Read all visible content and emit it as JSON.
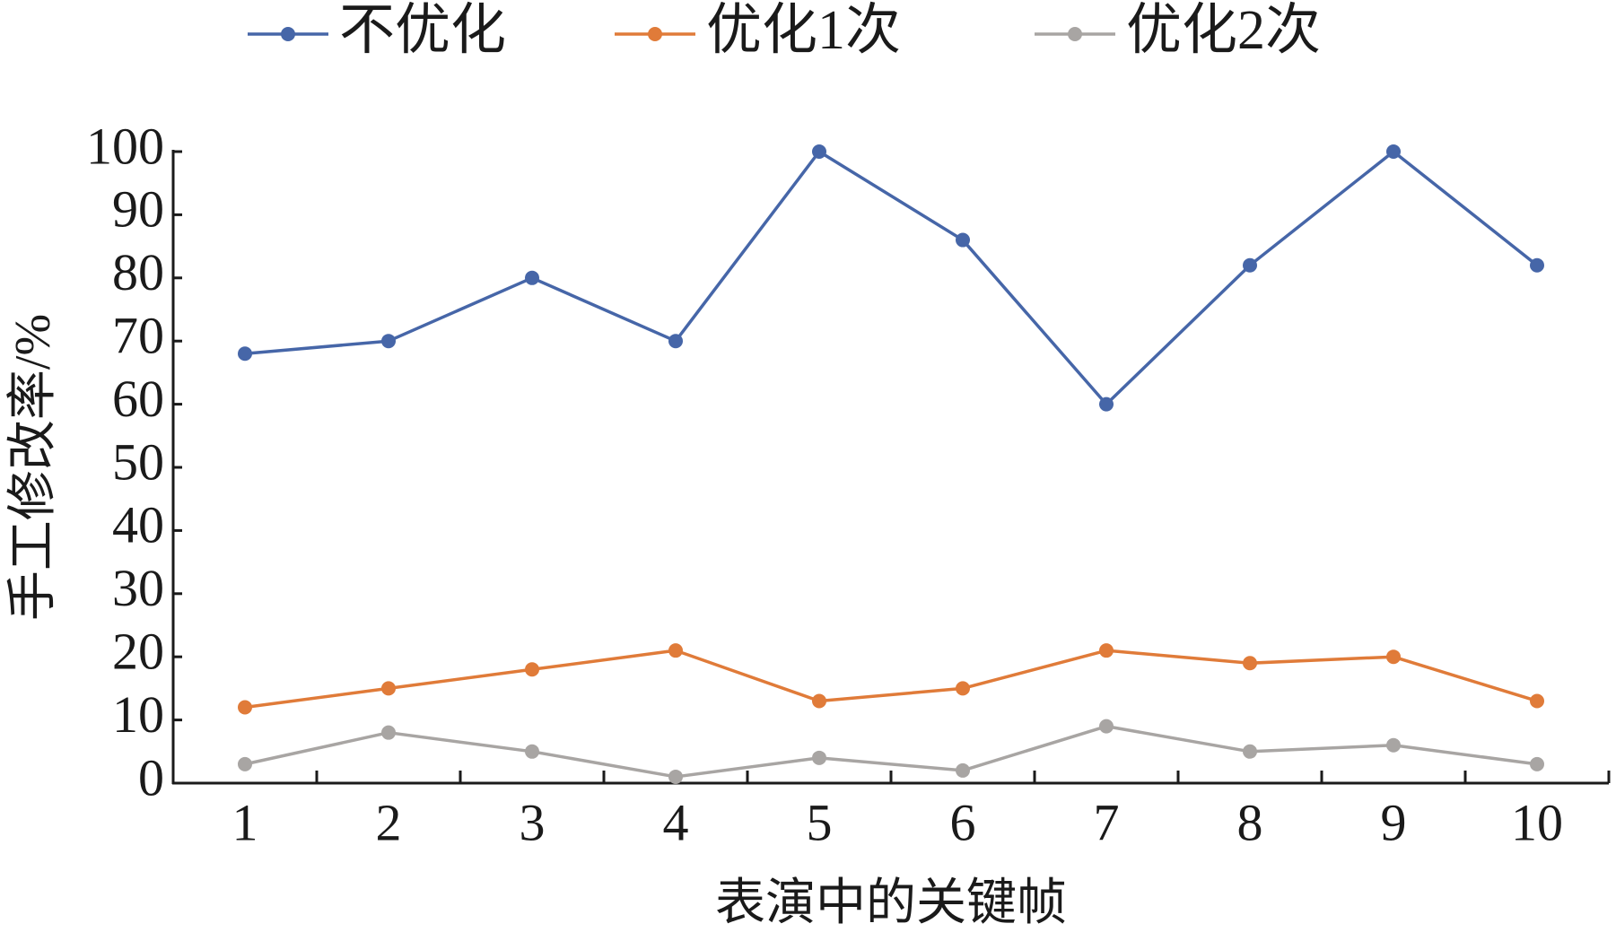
{
  "chart_data": {
    "type": "line",
    "x_label": "表演中的关键帧",
    "y_label": "手工修改率/%",
    "categories": [
      "1",
      "2",
      "3",
      "4",
      "5",
      "6",
      "7",
      "8",
      "9",
      "10"
    ],
    "series": [
      {
        "name": "不优化",
        "color": "#4666a8",
        "values": [
          68,
          70,
          80,
          70,
          100,
          86,
          60,
          82,
          100,
          82
        ]
      },
      {
        "name": "优化1次",
        "color": "#e07b39",
        "values": [
          12,
          15,
          18,
          21,
          13,
          15,
          21,
          19,
          20,
          13
        ]
      },
      {
        "name": "优化2次",
        "color": "#a8a5a3",
        "values": [
          3,
          8,
          5,
          1,
          4,
          2,
          9,
          5,
          6,
          3
        ]
      }
    ],
    "ylim": [
      0,
      100
    ],
    "yticks": [
      0,
      10,
      20,
      30,
      40,
      50,
      60,
      70,
      80,
      90,
      100
    ],
    "grid": false
  }
}
